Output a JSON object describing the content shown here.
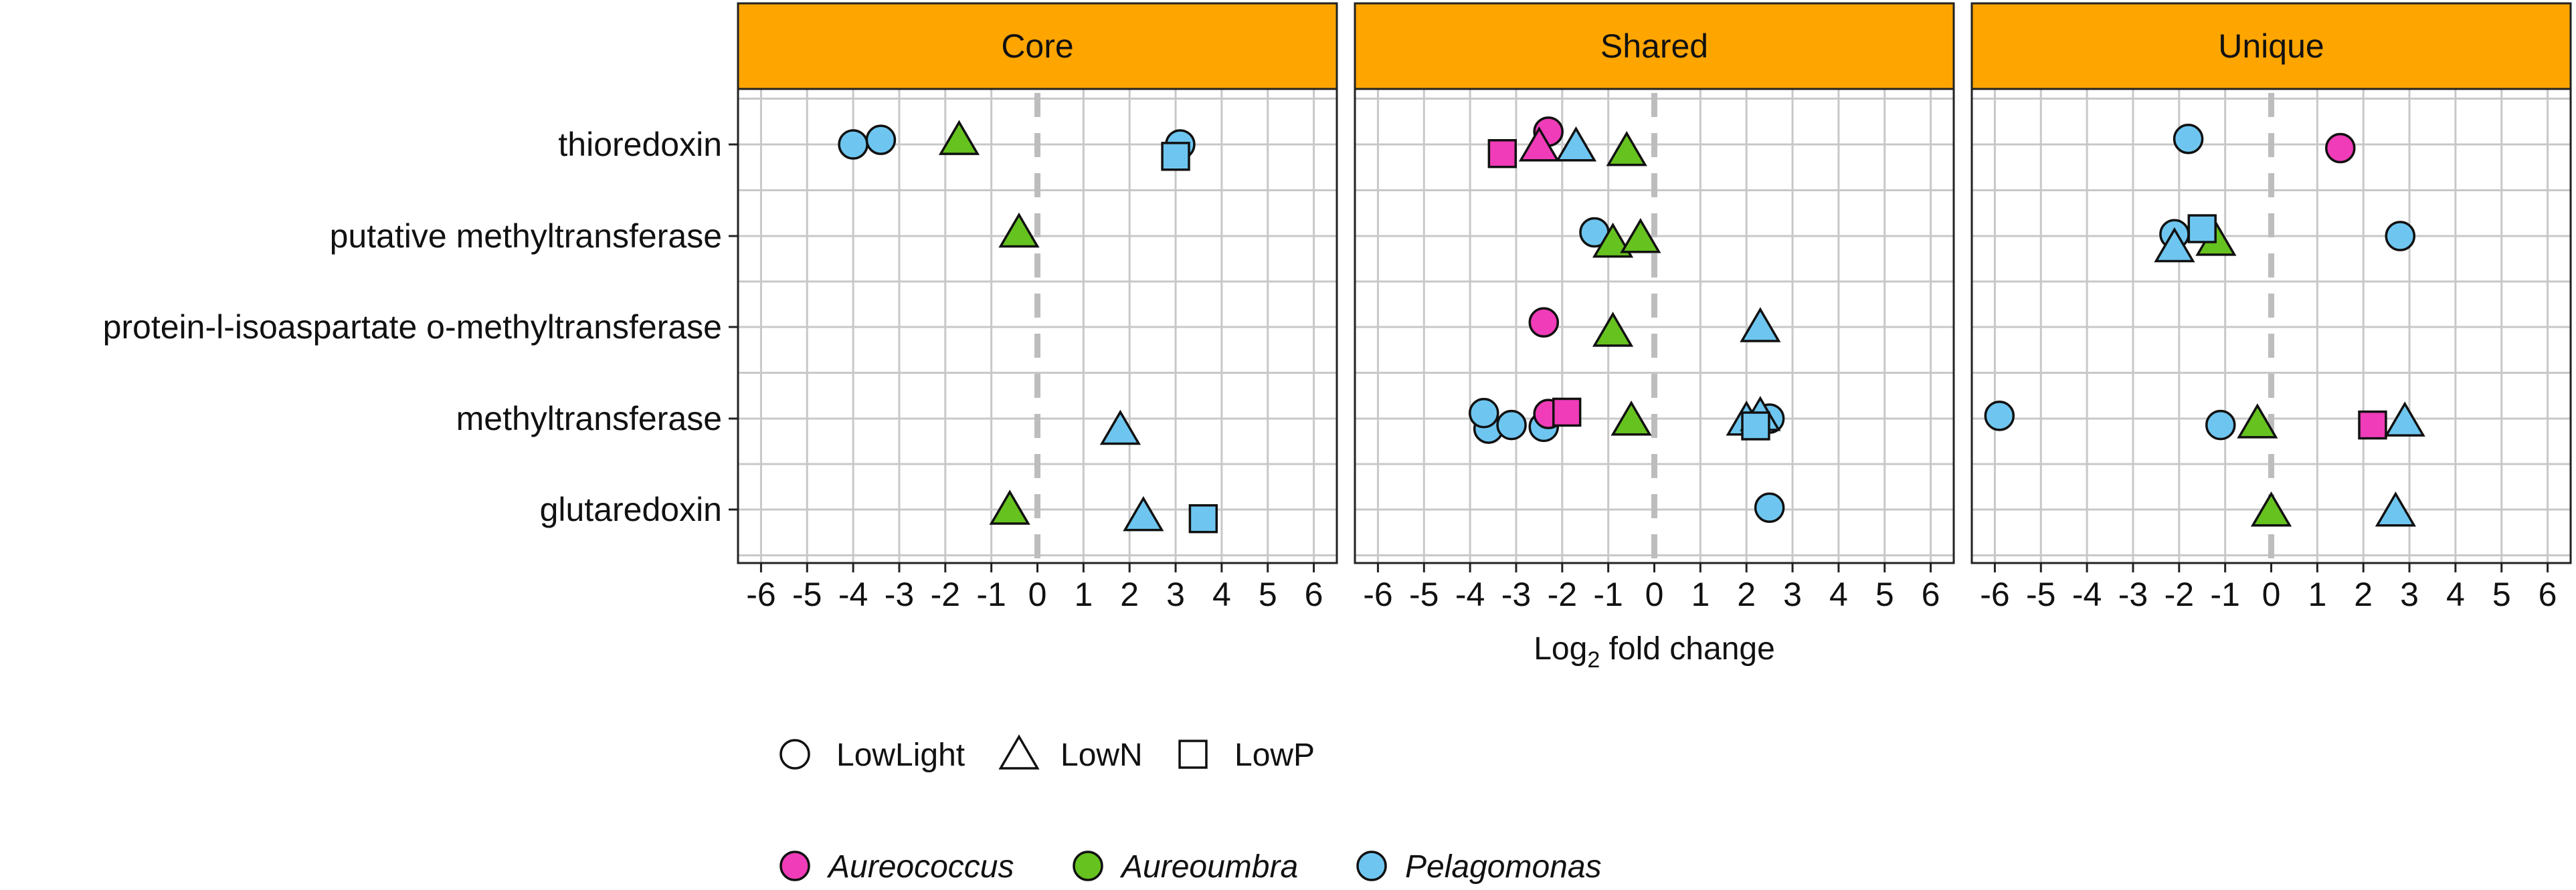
{
  "chart_data": {
    "type": "scatter",
    "xlabel_prefix": "Log",
    "xlabel_sub": "2",
    "xlabel_suffix": " fold change",
    "xlim": [
      -6.5,
      6.5
    ],
    "xticks": [
      -6,
      -5,
      -4,
      -3,
      -2,
      -1,
      0,
      1,
      2,
      3,
      4,
      5,
      6
    ],
    "genes": [
      "thioredoxin",
      "putative methyltransferase",
      "protein-l-isoaspartate o-methyltransferase",
      "methyltransferase",
      "glutaredoxin"
    ],
    "facets": [
      {
        "label": "Core",
        "points": [
          {
            "gene": "thioredoxin",
            "x": -4.0,
            "dy": 0.0,
            "organism": "Pelagomonas",
            "condition": "LowLight"
          },
          {
            "gene": "thioredoxin",
            "x": -3.4,
            "dy": 0.05,
            "organism": "Pelagomonas",
            "condition": "LowLight"
          },
          {
            "gene": "thioredoxin",
            "x": -1.7,
            "dy": 0.05,
            "organism": "Aureoumbra",
            "condition": "LowN"
          },
          {
            "gene": "thioredoxin",
            "x": 3.1,
            "dy": 0.0,
            "organism": "Pelagomonas",
            "condition": "LowLight"
          },
          {
            "gene": "thioredoxin",
            "x": 3.0,
            "dy": -0.13,
            "organism": "Pelagomonas",
            "condition": "LowP"
          },
          {
            "gene": "putative methyltransferase",
            "x": -0.4,
            "dy": 0.04,
            "organism": "Aureoumbra",
            "condition": "LowN"
          },
          {
            "gene": "methyltransferase",
            "x": 1.8,
            "dy": -0.12,
            "organism": "Pelagomonas",
            "condition": "LowN"
          },
          {
            "gene": "glutaredoxin",
            "x": -0.6,
            "dy": 0.0,
            "organism": "Aureoumbra",
            "condition": "LowN"
          },
          {
            "gene": "glutaredoxin",
            "x": 2.3,
            "dy": -0.07,
            "organism": "Pelagomonas",
            "condition": "LowN"
          },
          {
            "gene": "glutaredoxin",
            "x": 3.6,
            "dy": -0.1,
            "organism": "Pelagomonas",
            "condition": "LowP"
          }
        ]
      },
      {
        "label": "Shared",
        "points": [
          {
            "gene": "thioredoxin",
            "x": -3.3,
            "dy": -0.1,
            "organism": "Aureococcus",
            "condition": "LowP"
          },
          {
            "gene": "thioredoxin",
            "x": -2.3,
            "dy": 0.14,
            "organism": "Aureococcus",
            "condition": "LowLight"
          },
          {
            "gene": "thioredoxin",
            "x": -2.5,
            "dy": -0.02,
            "organism": "Aureococcus",
            "condition": "LowN"
          },
          {
            "gene": "thioredoxin",
            "x": -1.7,
            "dy": -0.02,
            "organism": "Pelagomonas",
            "condition": "LowN"
          },
          {
            "gene": "thioredoxin",
            "x": -0.6,
            "dy": -0.07,
            "organism": "Aureoumbra",
            "condition": "LowN"
          },
          {
            "gene": "putative methyltransferase",
            "x": -1.3,
            "dy": 0.04,
            "organism": "Pelagomonas",
            "condition": "LowLight"
          },
          {
            "gene": "putative methyltransferase",
            "x": -0.9,
            "dy": -0.07,
            "organism": "Aureoumbra",
            "condition": "LowN"
          },
          {
            "gene": "putative methyltransferase",
            "x": -0.3,
            "dy": -0.02,
            "organism": "Aureoumbra",
            "condition": "LowN"
          },
          {
            "gene": "protein-l-isoaspartate o-methyltransferase",
            "x": -2.4,
            "dy": 0.05,
            "organism": "Aureococcus",
            "condition": "LowLight"
          },
          {
            "gene": "protein-l-isoaspartate o-methyltransferase",
            "x": -0.9,
            "dy": -0.05,
            "organism": "Aureoumbra",
            "condition": "LowN"
          },
          {
            "gene": "protein-l-isoaspartate o-methyltransferase",
            "x": 2.3,
            "dy": 0.0,
            "organism": "Pelagomonas",
            "condition": "LowN"
          },
          {
            "gene": "methyltransferase",
            "x": -3.6,
            "dy": -0.11,
            "organism": "Pelagomonas",
            "condition": "LowLight"
          },
          {
            "gene": "methyltransferase",
            "x": -3.7,
            "dy": 0.06,
            "organism": "Pelagomonas",
            "condition": "LowLight"
          },
          {
            "gene": "methyltransferase",
            "x": -3.1,
            "dy": -0.07,
            "organism": "Pelagomonas",
            "condition": "LowLight"
          },
          {
            "gene": "methyltransferase",
            "x": -2.4,
            "dy": -0.09,
            "organism": "Pelagomonas",
            "condition": "LowLight"
          },
          {
            "gene": "methyltransferase",
            "x": -2.3,
            "dy": 0.05,
            "organism": "Aureococcus",
            "condition": "LowLight"
          },
          {
            "gene": "methyltransferase",
            "x": -1.9,
            "dy": 0.07,
            "organism": "Aureococcus",
            "condition": "LowP"
          },
          {
            "gene": "methyltransferase",
            "x": -0.5,
            "dy": -0.02,
            "organism": "Aureoumbra",
            "condition": "LowN"
          },
          {
            "gene": "methyltransferase",
            "x": 2.5,
            "dy": 0.0,
            "organism": "Pelagomonas",
            "condition": "LowLight"
          },
          {
            "gene": "methyltransferase",
            "x": 2.0,
            "dy": -0.02,
            "organism": "Pelagomonas",
            "condition": "LowN"
          },
          {
            "gene": "methyltransferase",
            "x": 2.3,
            "dy": 0.03,
            "organism": "Pelagomonas",
            "condition": "LowN"
          },
          {
            "gene": "methyltransferase",
            "x": 2.2,
            "dy": -0.08,
            "organism": "Pelagomonas",
            "condition": "LowP"
          },
          {
            "gene": "glutaredoxin",
            "x": 2.5,
            "dy": 0.02,
            "organism": "Pelagomonas",
            "condition": "LowLight"
          }
        ]
      },
      {
        "label": "Unique",
        "points": [
          {
            "gene": "thioredoxin",
            "x": -1.8,
            "dy": 0.06,
            "organism": "Pelagomonas",
            "condition": "LowLight"
          },
          {
            "gene": "thioredoxin",
            "x": 1.5,
            "dy": -0.04,
            "organism": "Aureococcus",
            "condition": "LowLight"
          },
          {
            "gene": "putative methyltransferase",
            "x": -2.1,
            "dy": 0.02,
            "organism": "Pelagomonas",
            "condition": "LowLight"
          },
          {
            "gene": "putative methyltransferase",
            "x": -2.1,
            "dy": -0.12,
            "organism": "Pelagomonas",
            "condition": "LowN"
          },
          {
            "gene": "putative methyltransferase",
            "x": -1.2,
            "dy": -0.05,
            "organism": "Aureoumbra",
            "condition": "LowN"
          },
          {
            "gene": "putative methyltransferase",
            "x": -1.5,
            "dy": 0.08,
            "organism": "Pelagomonas",
            "condition": "LowP"
          },
          {
            "gene": "putative methyltransferase",
            "x": 2.8,
            "dy": 0.0,
            "organism": "Pelagomonas",
            "condition": "LowLight"
          },
          {
            "gene": "methyltransferase",
            "x": -5.9,
            "dy": 0.03,
            "organism": "Pelagomonas",
            "condition": "LowLight"
          },
          {
            "gene": "methyltransferase",
            "x": -1.1,
            "dy": -0.07,
            "organism": "Pelagomonas",
            "condition": "LowLight"
          },
          {
            "gene": "methyltransferase",
            "x": -0.3,
            "dy": -0.05,
            "organism": "Aureoumbra",
            "condition": "LowN"
          },
          {
            "gene": "methyltransferase",
            "x": 2.2,
            "dy": -0.07,
            "organism": "Aureococcus",
            "condition": "LowP"
          },
          {
            "gene": "methyltransferase",
            "x": 2.9,
            "dy": -0.03,
            "organism": "Pelagomonas",
            "condition": "LowN"
          },
          {
            "gene": "glutaredoxin",
            "x": 0.0,
            "dy": -0.02,
            "organism": "Aureoumbra",
            "condition": "LowN"
          },
          {
            "gene": "glutaredoxin",
            "x": 2.7,
            "dy": -0.02,
            "organism": "Pelagomonas",
            "condition": "LowN"
          }
        ]
      }
    ],
    "legend_shape": {
      "title": "",
      "items": [
        {
          "label": "LowLight",
          "condition": "LowLight"
        },
        {
          "label": "LowN",
          "condition": "LowN"
        },
        {
          "label": "LowP",
          "condition": "LowP"
        }
      ]
    },
    "legend_color": {
      "items": [
        {
          "label": "Aureococcus",
          "organism": "Aureococcus"
        },
        {
          "label": "Aureoumbra",
          "organism": "Aureoumbra"
        },
        {
          "label": "Pelagomonas",
          "organism": "Pelagomonas"
        }
      ]
    },
    "colors": {
      "Aureococcus": "#F03CB8",
      "Aureoumbra": "#66C21F",
      "Pelagomonas": "#6EC6F0",
      "strip": "#FFA500"
    }
  }
}
